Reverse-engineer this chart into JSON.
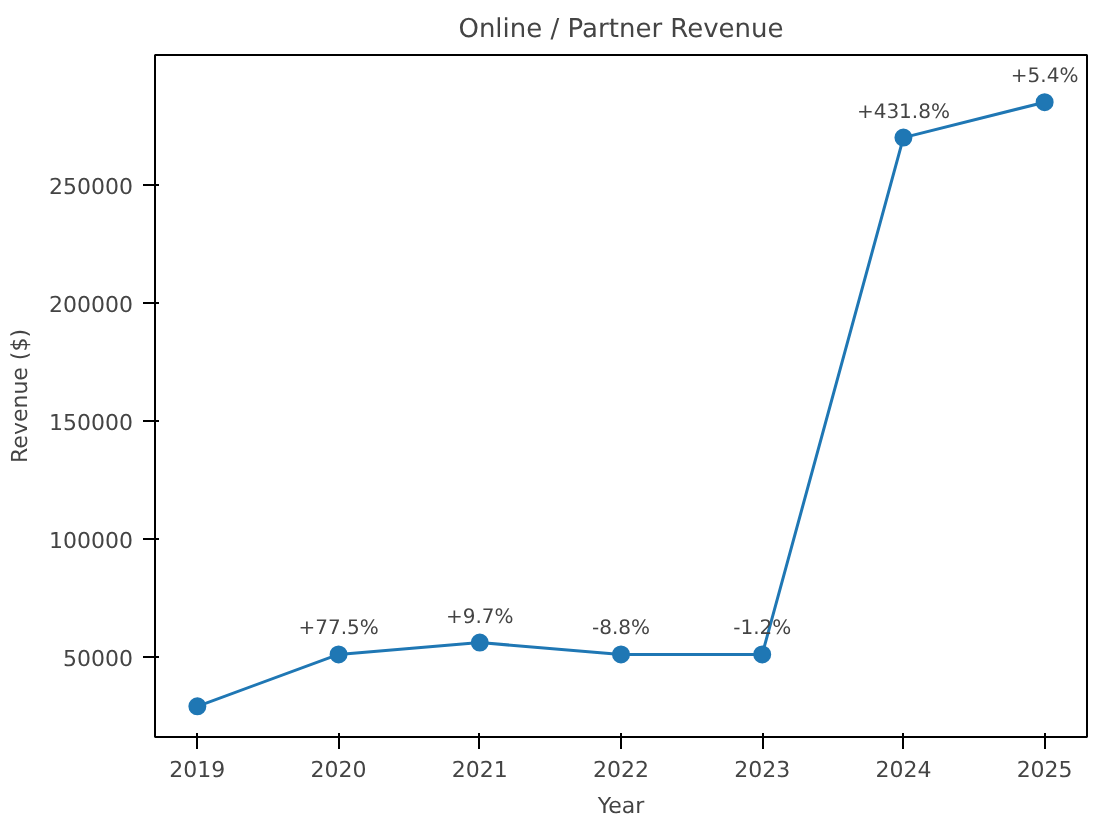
{
  "chart_data": {
    "type": "line",
    "title": "Online / Partner Revenue",
    "xlabel": "Year",
    "ylabel": "Revenue ($)",
    "x": [
      2019,
      2020,
      2021,
      2022,
      2023,
      2024,
      2025
    ],
    "series": [
      {
        "color": "#1f77b4",
        "values": [
          29000,
          51000,
          56000,
          51000,
          51000,
          270000,
          285000
        ]
      }
    ],
    "xlim": [
      2018.7,
      2025.3
    ],
    "ylim": [
      16000,
      305000
    ],
    "xticks": [
      2019,
      2020,
      2021,
      2022,
      2023,
      2024,
      2025
    ],
    "yticks": [
      50000,
      100000,
      150000,
      200000,
      250000
    ],
    "grid": false,
    "marker": "circle",
    "line_style": "solid",
    "annotations": [
      {
        "text": "+77.5%",
        "x": 2020,
        "y": 51000
      },
      {
        "text": "+9.7%",
        "x": 2021,
        "y": 56000
      },
      {
        "text": "-8.8%",
        "x": 2022,
        "y": 51000
      },
      {
        "text": "-1.2%",
        "x": 2023,
        "y": 51000
      },
      {
        "text": "+431.8%",
        "x": 2024,
        "y": 270000
      },
      {
        "text": "+5.4%",
        "x": 2025,
        "y": 285000
      }
    ]
  }
}
